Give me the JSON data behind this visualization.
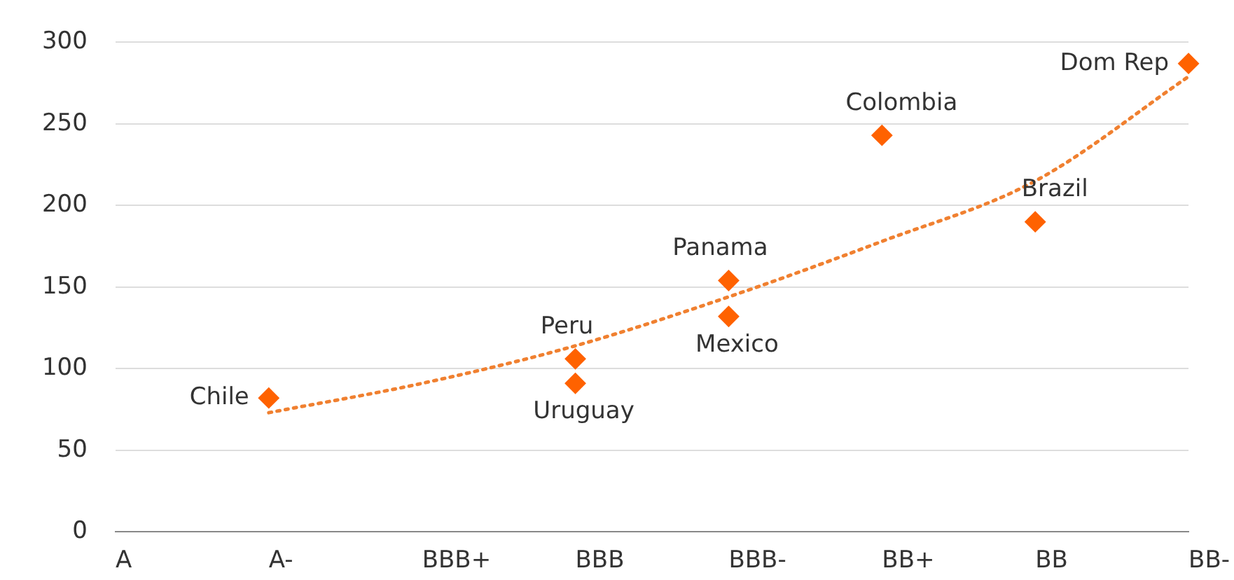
{
  "chart_data": {
    "type": "scatter",
    "categories": [
      "A",
      "A-",
      "BBB+",
      "BBB",
      "BBB-",
      "BB+",
      "BB",
      "BB-"
    ],
    "series": [
      {
        "color": "#ff6200",
        "x": [
          "A-",
          "BBB",
          "BBB",
          "BBB-",
          "BBB-",
          "BB+",
          "BB",
          "BB-"
        ],
        "values": [
          82,
          106,
          91,
          154,
          132,
          243,
          190,
          287
        ],
        "value_labels": [
          "Chile",
          "Peru",
          "Uruguay",
          "Panama",
          "Mexico",
          "Colombia",
          "Brazil",
          "Dom Rep"
        ]
      },
      {
        "type": "line",
        "color": "#f08030",
        "line_style": "dotted",
        "marker": "none",
        "x": [
          "A-",
          "BBB+",
          "BBB",
          "BBB-",
          "BB+",
          "BB",
          "BB-"
        ],
        "values": [
          73,
          91,
          114,
          144,
          178,
          215,
          279
        ]
      }
    ],
    "ylim": [
      0,
      300
    ],
    "yticks": [
      0,
      50,
      100,
      150,
      200,
      250,
      300
    ],
    "grid": "y",
    "legend": false,
    "marker": "diamond"
  }
}
